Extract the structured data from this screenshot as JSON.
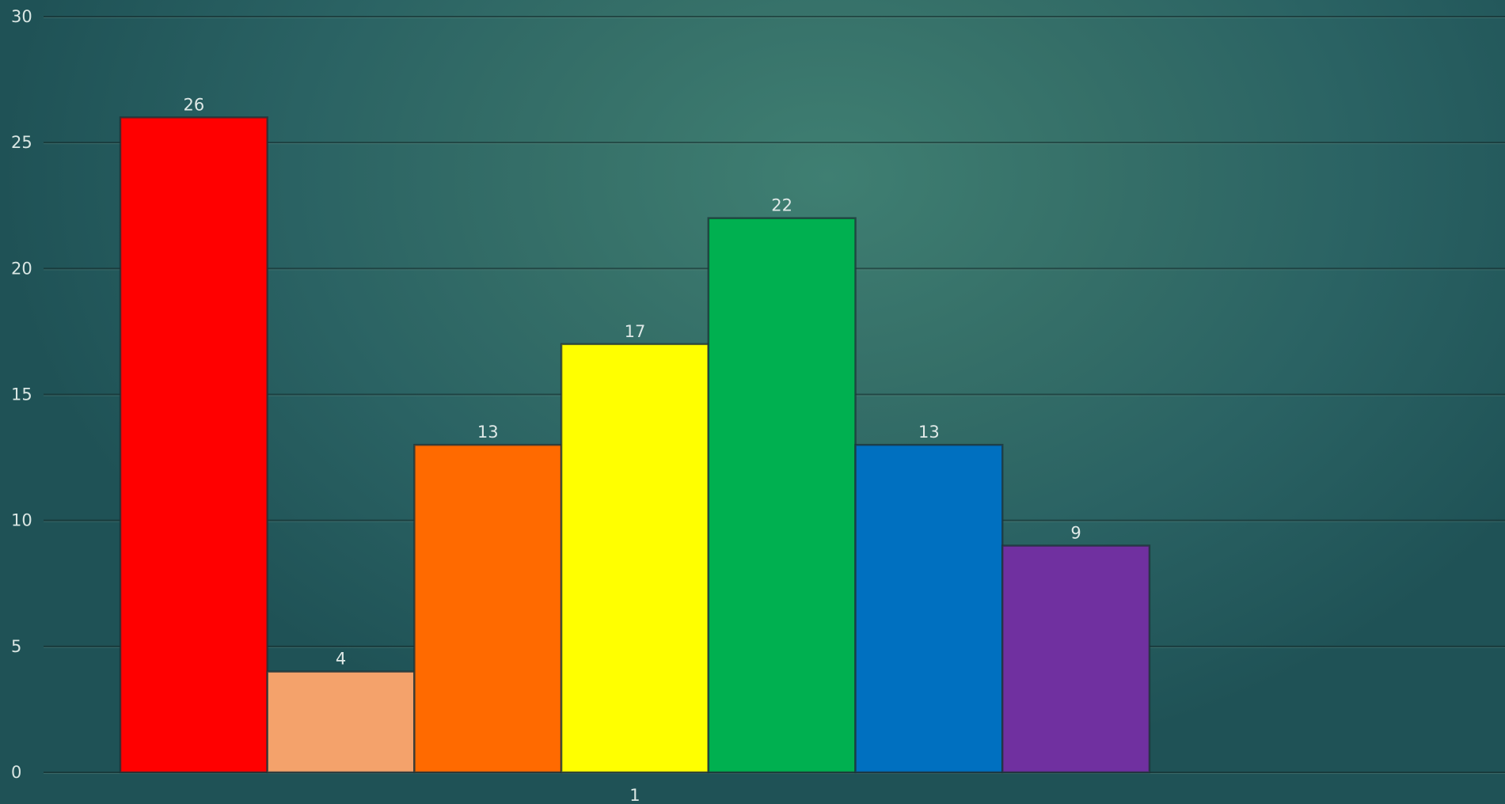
{
  "chart_data": {
    "type": "bar",
    "categories": [
      "1"
    ],
    "series": [
      {
        "values": [
          26
        ],
        "color": "#ff0000"
      },
      {
        "values": [
          4
        ],
        "color": "#f4a26b"
      },
      {
        "values": [
          13
        ],
        "color": "#ff6a00"
      },
      {
        "values": [
          17
        ],
        "color": "#ffff00"
      },
      {
        "values": [
          22
        ],
        "color": "#00b050"
      },
      {
        "values": [
          13
        ],
        "color": "#0070c0"
      },
      {
        "values": [
          9
        ],
        "color": "#7030a0"
      }
    ],
    "ylim": [
      0,
      30
    ],
    "yticks": [
      0,
      5,
      10,
      15,
      20,
      25,
      30
    ],
    "grid": true,
    "data_labels": [
      "26",
      "4",
      "13",
      "17",
      "22",
      "13",
      "9"
    ]
  }
}
